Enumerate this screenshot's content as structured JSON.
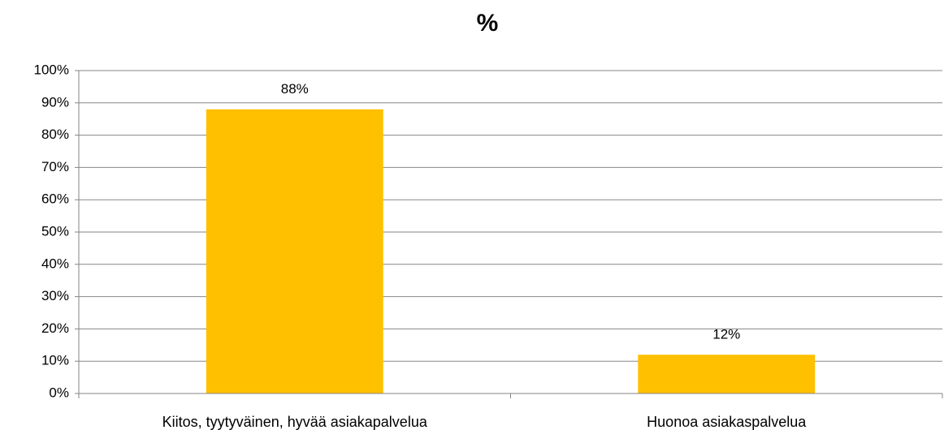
{
  "chart_data": {
    "type": "bar",
    "title": "%",
    "categories": [
      "Kiitos, tyytyväinen, hyvää asiakapalvelua",
      "Huonoa asiakaspalvelua"
    ],
    "values": [
      88,
      12
    ],
    "value_labels": [
      "88%",
      "12%"
    ],
    "color": "#ffc000",
    "ylim": [
      0,
      100
    ],
    "yticks": [
      {
        "value": 0,
        "label": "0%"
      },
      {
        "value": 10,
        "label": "10%"
      },
      {
        "value": 20,
        "label": "20%"
      },
      {
        "value": 30,
        "label": "30%"
      },
      {
        "value": 40,
        "label": "40%"
      },
      {
        "value": 50,
        "label": "50%"
      },
      {
        "value": 60,
        "label": "60%"
      },
      {
        "value": 70,
        "label": "70%"
      },
      {
        "value": 80,
        "label": "80%"
      },
      {
        "value": 90,
        "label": "90%"
      },
      {
        "value": 100,
        "label": "100%"
      }
    ],
    "grid": true
  }
}
